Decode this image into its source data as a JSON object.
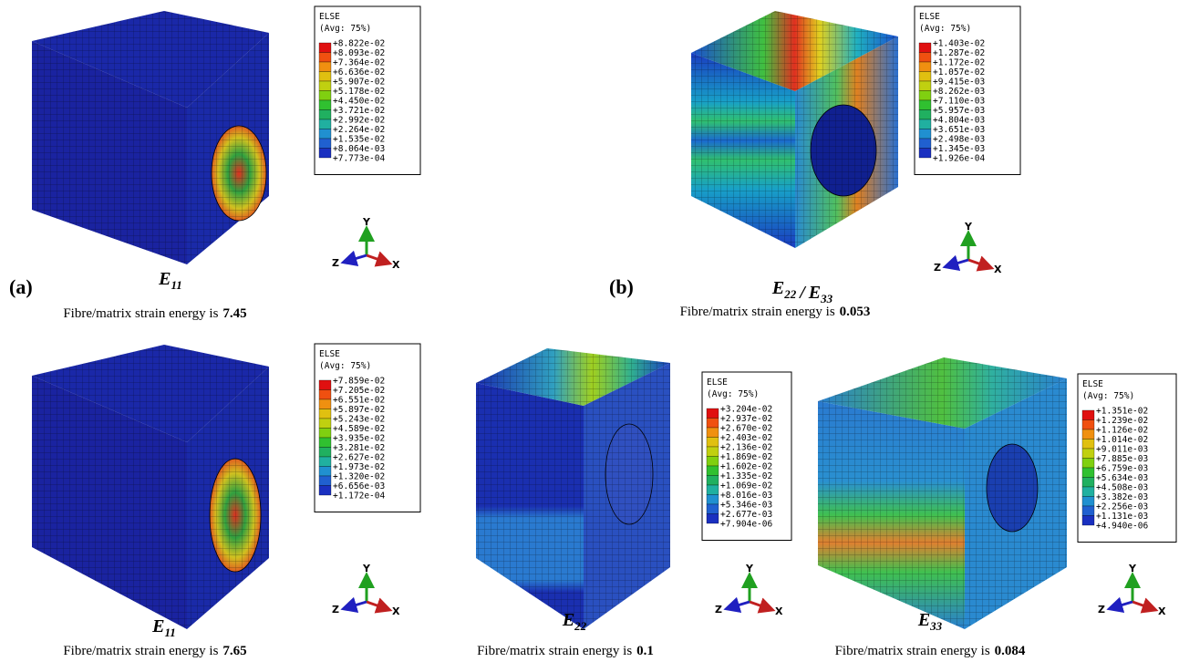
{
  "panels": [
    {
      "label": "(a)",
      "caption": [
        {
          "base": "E",
          "sub": "11"
        }
      ],
      "energy_text": "Fibre/matrix strain energy is",
      "energy_value": 7.45,
      "legend": {
        "title": "ELSE",
        "subtitle": "(Avg: 75%)",
        "values": [
          "+8.822e-02",
          "+8.093e-02",
          "+7.364e-02",
          "+6.636e-02",
          "+5.907e-02",
          "+5.178e-02",
          "+4.450e-02",
          "+3.721e-02",
          "+2.992e-02",
          "+2.264e-02",
          "+1.535e-02",
          "+8.064e-03",
          "+7.773e-04"
        ]
      },
      "triad": {
        "y": "Y",
        "z": "Z",
        "x": "X"
      }
    },
    {
      "label": "(b)",
      "caption": [
        {
          "base": "E",
          "sub": "22"
        },
        {
          "base": "E",
          "sub": "33"
        }
      ],
      "caption_separator": "/",
      "energy_text": "Fibre/matrix strain energy is",
      "energy_value": 0.053,
      "legend": {
        "title": "ELSE",
        "subtitle": "(Avg: 75%)",
        "values": [
          "+1.403e-02",
          "+1.287e-02",
          "+1.172e-02",
          "+1.057e-02",
          "+9.415e-03",
          "+8.262e-03",
          "+7.110e-03",
          "+5.957e-03",
          "+4.804e-03",
          "+3.651e-03",
          "+2.498e-03",
          "+1.345e-03",
          "+1.926e-04"
        ]
      },
      "triad": {
        "y": "Y",
        "z": "Z",
        "x": "X"
      }
    },
    {
      "caption": [
        {
          "base": "E",
          "sub": "11"
        }
      ],
      "energy_text": "Fibre/matrix strain energy is",
      "energy_value": 7.65,
      "legend": {
        "title": "ELSE",
        "subtitle": "(Avg: 75%)",
        "values": [
          "+7.859e-02",
          "+7.205e-02",
          "+6.551e-02",
          "+5.897e-02",
          "+5.243e-02",
          "+4.589e-02",
          "+3.935e-02",
          "+3.281e-02",
          "+2.627e-02",
          "+1.973e-02",
          "+1.320e-02",
          "+6.656e-03",
          "+1.172e-04"
        ]
      },
      "triad": {
        "y": "Y",
        "z": "Z",
        "x": "X"
      }
    },
    {
      "caption": [
        {
          "base": "E",
          "sub": "22"
        }
      ],
      "energy_text": "Fibre/matrix strain energy is",
      "energy_value": 0.1,
      "legend": {
        "title": "ELSE",
        "subtitle": "(Avg: 75%)",
        "values": [
          "+3.204e-02",
          "+2.937e-02",
          "+2.670e-02",
          "+2.403e-02",
          "+2.136e-02",
          "+1.869e-02",
          "+1.602e-02",
          "+1.335e-02",
          "+1.069e-02",
          "+8.016e-03",
          "+5.346e-03",
          "+2.677e-03",
          "+7.904e-06"
        ]
      },
      "triad": {
        "y": "Y",
        "z": "Z",
        "x": "X"
      }
    },
    {
      "caption": [
        {
          "base": "E",
          "sub": "33"
        }
      ],
      "energy_text": "Fibre/matrix strain energy is",
      "energy_value": 0.084,
      "legend": {
        "title": "ELSE",
        "subtitle": "(Avg: 75%)",
        "values": [
          "+1.351e-02",
          "+1.239e-02",
          "+1.126e-02",
          "+1.014e-02",
          "+9.011e-03",
          "+7.885e-03",
          "+6.759e-03",
          "+5.634e-03",
          "+4.508e-03",
          "+3.382e-03",
          "+2.256e-03",
          "+1.131e-03",
          "+4.940e-06"
        ]
      },
      "triad": {
        "y": "Y",
        "z": "Z",
        "x": "X"
      }
    }
  ]
}
